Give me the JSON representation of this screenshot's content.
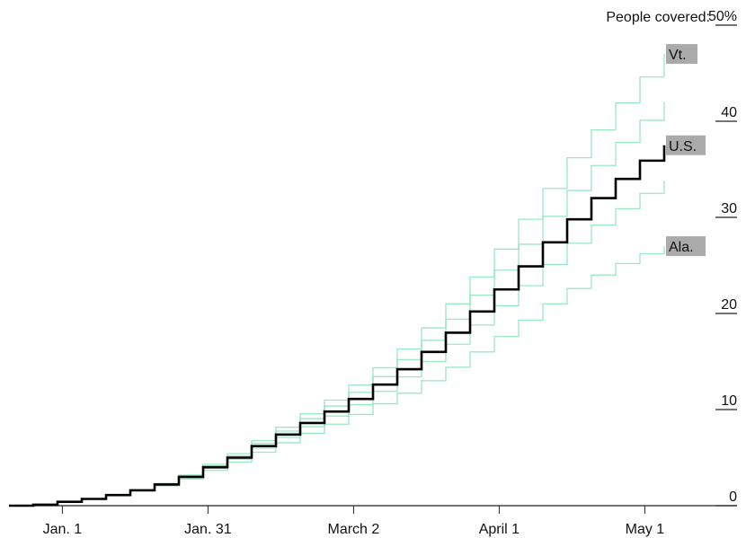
{
  "chart_data": {
    "type": "line",
    "step": true,
    "annotation": "People covered:",
    "x": [
      "12-21",
      "12-26",
      "12-31",
      "01-05",
      "01-10",
      "01-15",
      "01-20",
      "01-25",
      "01-30",
      "02-04",
      "02-09",
      "02-14",
      "02-19",
      "02-24",
      "03-01",
      "03-06",
      "03-11",
      "03-16",
      "03-21",
      "03-26",
      "03-31",
      "04-05",
      "04-10",
      "04-15",
      "04-20",
      "04-25",
      "04-30",
      "05-05"
    ],
    "xlim": [
      "12-21",
      "05-20"
    ],
    "xticks": [
      {
        "value": "01-01",
        "label": "Jan. 1"
      },
      {
        "value": "01-31",
        "label": "Jan. 31"
      },
      {
        "value": "03-02",
        "label": "March 2"
      },
      {
        "value": "04-01",
        "label": "April 1"
      },
      {
        "value": "05-01",
        "label": "May 1"
      }
    ],
    "ylim": [
      0,
      50
    ],
    "yticks": [
      0,
      10,
      20,
      30,
      40,
      {
        "value": 50,
        "label": "50%"
      }
    ],
    "series": [
      {
        "color": "#7fe3b4",
        "values": [
          0,
          0.1,
          0.4,
          0.71,
          1.12,
          1.64,
          2.26,
          3.09,
          4.14,
          5.2,
          6.48,
          7.76,
          9.06,
          10.37,
          11.79,
          13.44,
          15.2,
          17.2,
          19.4,
          21.9,
          24.5,
          27.2,
          30.1,
          32.8,
          35.4,
          37.8,
          40.1,
          42.0
        ]
      },
      {
        "color": "#7fe3b4",
        "values": [
          0,
          0.1,
          0.4,
          0.69,
          1.08,
          1.57,
          2.15,
          2.92,
          3.88,
          4.83,
          5.97,
          7.1,
          8.22,
          9.33,
          10.5,
          11.9,
          13.4,
          15.0,
          16.8,
          18.8,
          20.8,
          22.9,
          25.1,
          27.3,
          29.2,
          30.9,
          32.5,
          33.8
        ]
      },
      {
        "name": "Vt.",
        "color": "#7fe3b4",
        "values": [
          0,
          0.1,
          0.41,
          0.72,
          1.14,
          1.67,
          2.32,
          3.19,
          4.3,
          5.42,
          6.77,
          8.16,
          9.56,
          10.98,
          12.54,
          14.35,
          16.3,
          18.5,
          21.0,
          23.8,
          26.7,
          29.8,
          33.0,
          36.2,
          39.1,
          41.9,
          44.6,
          47.0
        ]
      },
      {
        "name": "Ala.",
        "color": "#7fe3b4",
        "values": [
          0,
          0.1,
          0.39,
          0.68,
          1.05,
          1.51,
          2.06,
          2.78,
          3.67,
          4.53,
          5.56,
          6.55,
          7.53,
          8.48,
          9.49,
          10.6,
          11.7,
          13.0,
          14.4,
          16.0,
          17.6,
          19.3,
          21.0,
          22.6,
          24.0,
          25.2,
          26.2,
          27.0
        ]
      },
      {
        "name": "U.S.",
        "color": "#000000",
        "values": [
          0,
          0.1,
          0.4,
          0.7,
          1.1,
          1.6,
          2.2,
          3.0,
          4.0,
          5.0,
          6.2,
          7.4,
          8.6,
          9.8,
          11.1,
          12.6,
          14.2,
          16.0,
          18.0,
          20.2,
          22.5,
          24.9,
          27.4,
          29.8,
          32.0,
          34.0,
          35.9,
          37.5
        ]
      }
    ]
  }
}
